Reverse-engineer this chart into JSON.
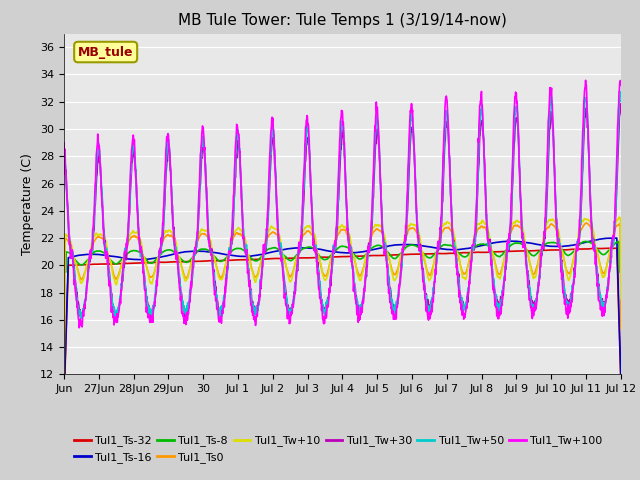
{
  "title": "MB Tule Tower: Tule Temps 1 (3/19/14-now)",
  "ylabel": "Temperature (C)",
  "ylim": [
    12,
    37
  ],
  "yticks": [
    12,
    14,
    16,
    18,
    20,
    22,
    24,
    26,
    28,
    30,
    32,
    34,
    36
  ],
  "plot_bg_color": "#e8e8e8",
  "fig_bg_color": "#d0d0d0",
  "grid_color": "#ffffff",
  "legend_box_label": "MB_tule",
  "legend_box_color": "#ffff99",
  "legend_box_edge": "#999900",
  "legend_box_text": "#990000",
  "series": [
    {
      "label": "Tul1_Ts-32",
      "color": "#dd0000",
      "lw": 1.2
    },
    {
      "label": "Tul1_Ts-16",
      "color": "#0000cc",
      "lw": 1.2
    },
    {
      "label": "Tul1_Ts-8",
      "color": "#00bb00",
      "lw": 1.2
    },
    {
      "label": "Tul1_Ts0",
      "color": "#ff9900",
      "lw": 1.2
    },
    {
      "label": "Tul1_Tw+10",
      "color": "#dddd00",
      "lw": 1.2
    },
    {
      "label": "Tul1_Tw+30",
      "color": "#bb00bb",
      "lw": 1.2
    },
    {
      "label": "Tul1_Tw+50",
      "color": "#00cccc",
      "lw": 1.2
    },
    {
      "label": "Tul1_Tw+100",
      "color": "#ff00ff",
      "lw": 1.2
    }
  ],
  "xtick_labels": [
    "Jun",
    "27Jun",
    "28Jun",
    "29Jun",
    "30",
    "Jul 1",
    "Jul 2",
    "Jul 3",
    "Jul 4",
    "Jul 5",
    "Jul 6",
    "Jul 7",
    "Jul 8",
    "Jul 9",
    "Jul 10",
    "Jul 11",
    "Jul 12"
  ],
  "n_days": 16,
  "pts_per_day": 96
}
